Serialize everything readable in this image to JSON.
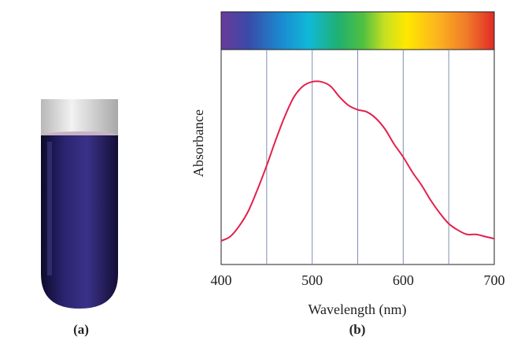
{
  "chart_data": {
    "type": "line",
    "xlabel": "Wavelength (nm)",
    "ylabel": "Absorbance",
    "annotations": [
      "(a)",
      "(b)"
    ],
    "x": [
      400,
      410,
      420,
      430,
      440,
      450,
      460,
      470,
      480,
      490,
      500,
      510,
      520,
      530,
      540,
      550,
      560,
      570,
      580,
      590,
      600,
      610,
      620,
      630,
      640,
      650,
      660,
      670,
      680,
      690,
      700
    ],
    "values": [
      0.11,
      0.13,
      0.18,
      0.25,
      0.35,
      0.46,
      0.58,
      0.69,
      0.78,
      0.83,
      0.85,
      0.85,
      0.83,
      0.78,
      0.74,
      0.72,
      0.71,
      0.68,
      0.63,
      0.56,
      0.5,
      0.43,
      0.37,
      0.3,
      0.24,
      0.19,
      0.16,
      0.14,
      0.14,
      0.13,
      0.12
    ],
    "color": "#e3204c",
    "grid_color": "#7f8fb0",
    "xlim": [
      400,
      700
    ],
    "xticks": [
      400,
      500,
      600,
      700
    ],
    "xgrid": [
      450,
      500,
      550,
      600,
      650
    ],
    "ylim": [
      0,
      1
    ]
  }
}
